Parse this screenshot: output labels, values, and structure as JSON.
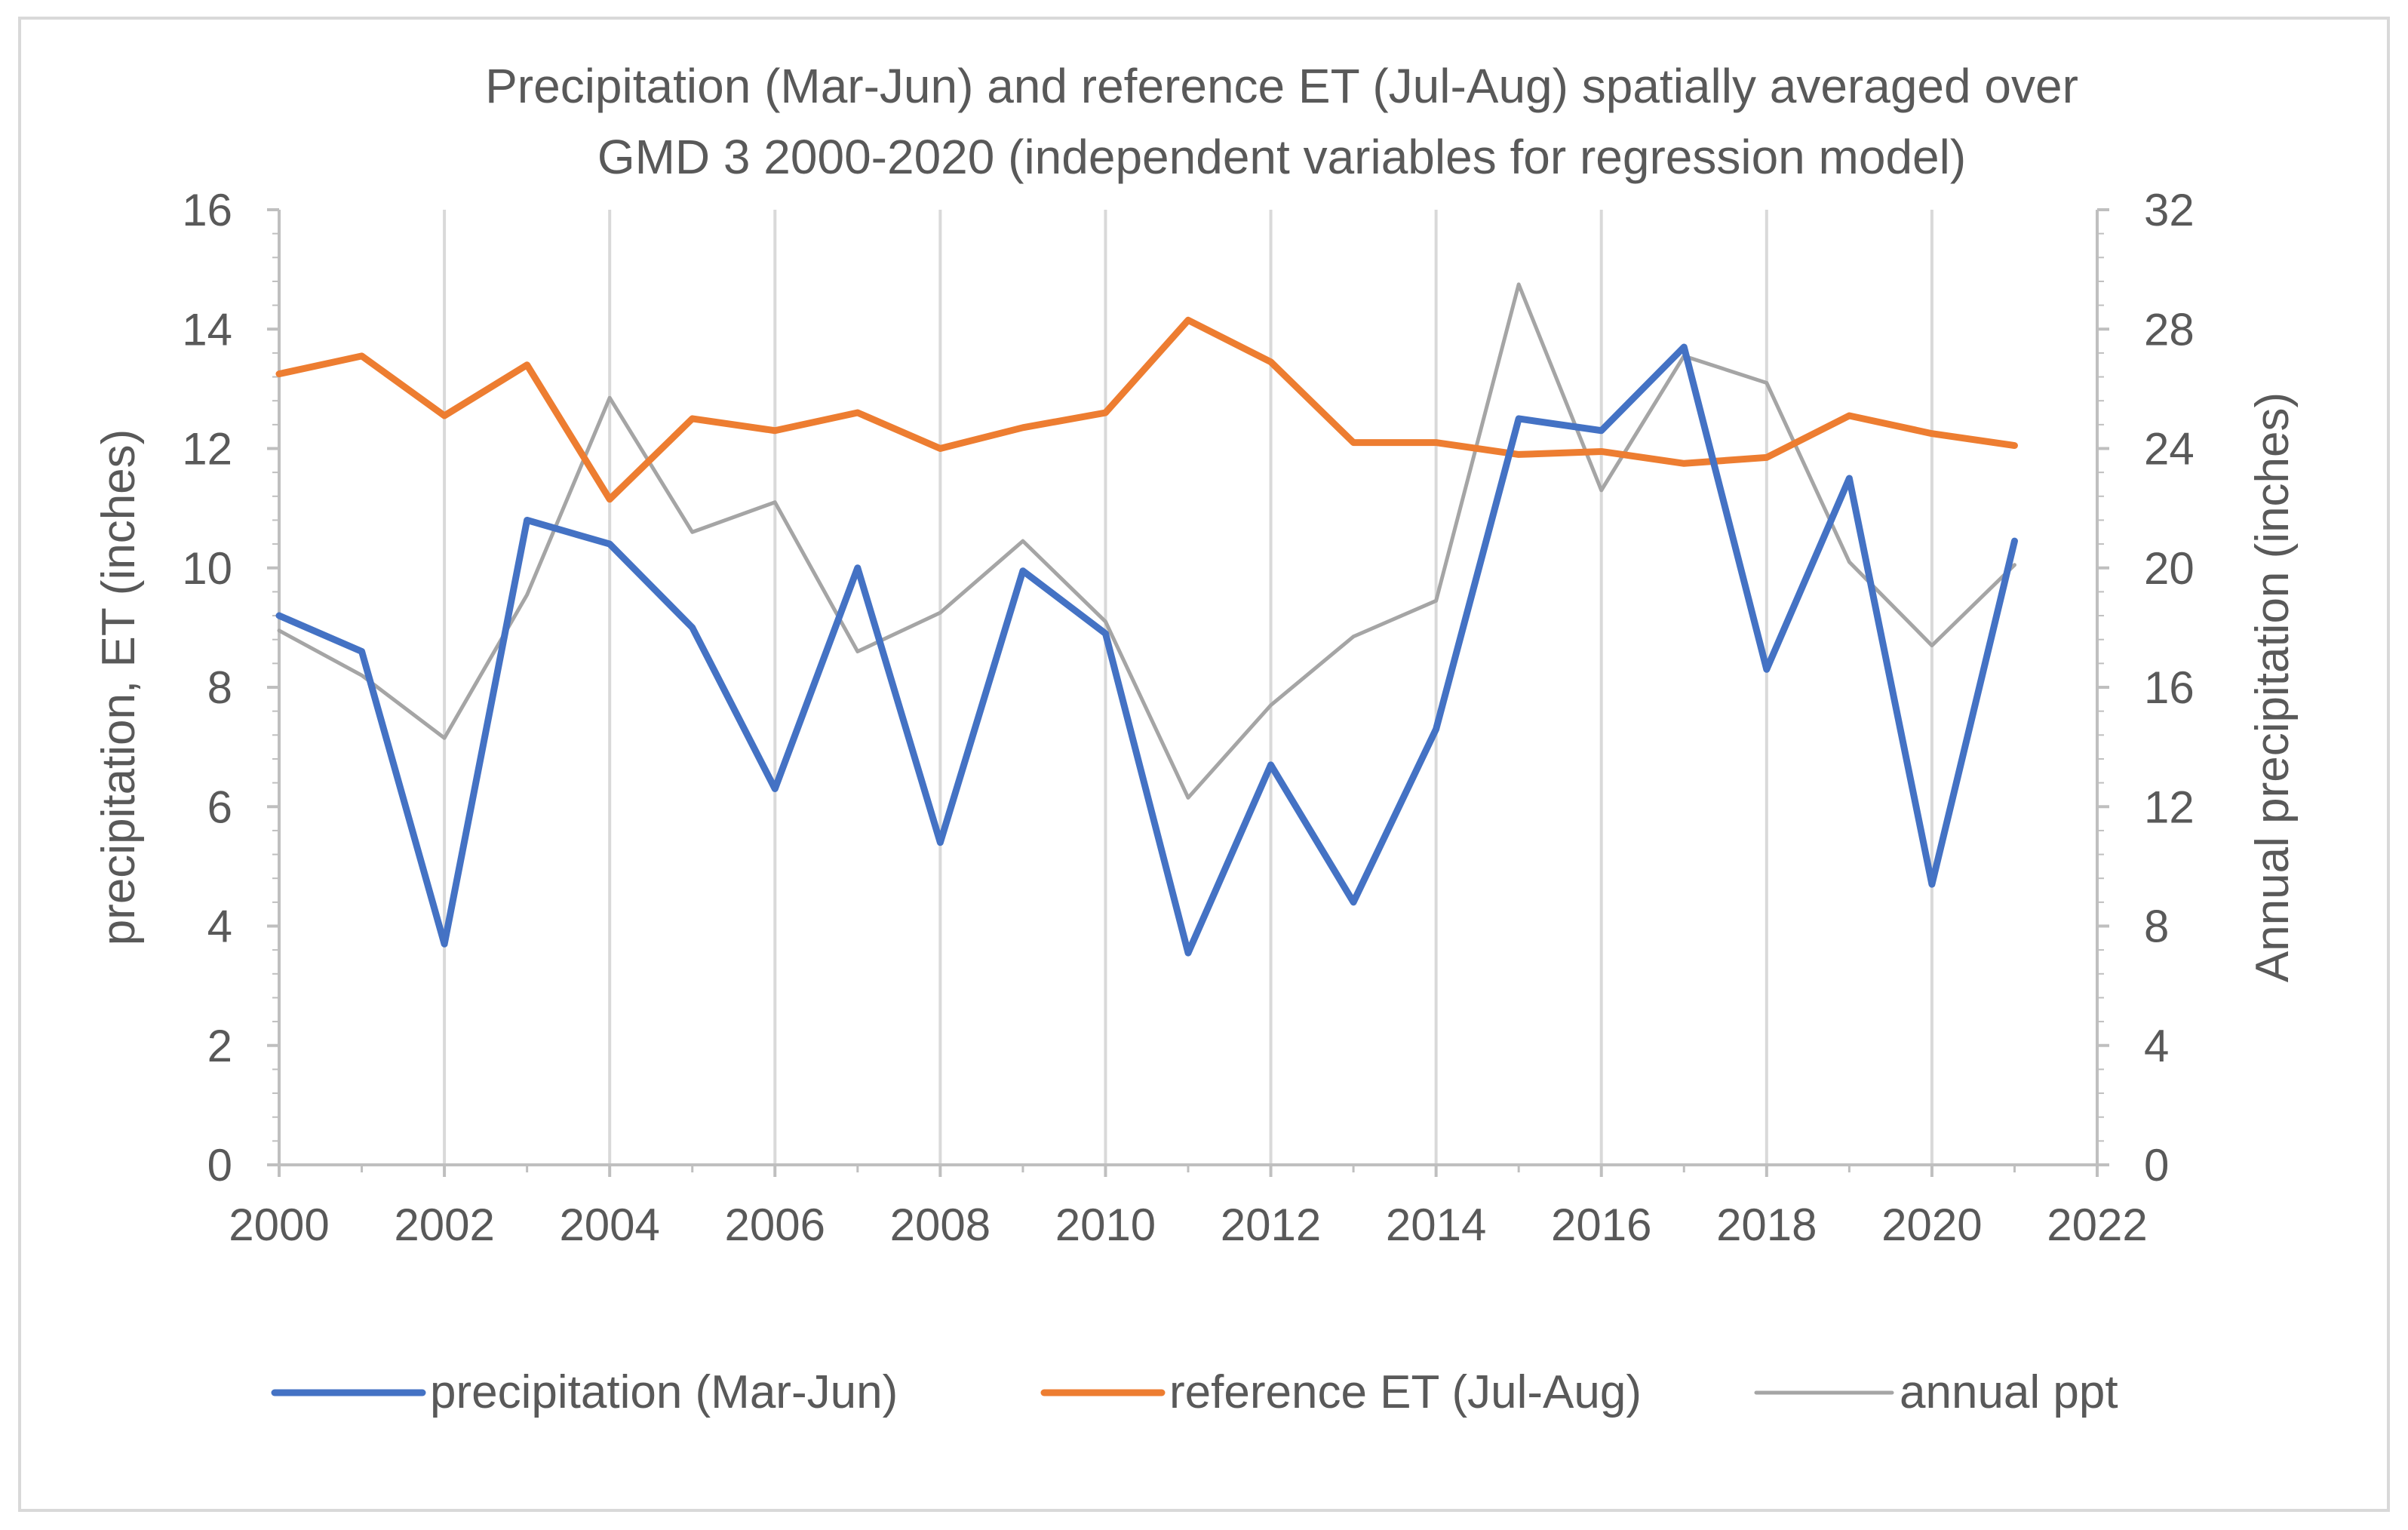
{
  "chart_data": {
    "type": "line",
    "title": "Precipitation (Mar-Jun) and reference  ET (Jul-Aug) spatially averaged over GMD 3 2000-2020 (independent variables for regression model)",
    "title_lines": [
      "Precipitation (Mar-Jun) and reference  ET (Jul-Aug) spatially averaged over",
      "GMD 3 2000-2020 (independent variables for regression model)"
    ],
    "ylabel": "precipitation, ET (inches)",
    "y2label": "Annual precipitation (inches)",
    "xlim": [
      2000,
      2022
    ],
    "ylim": [
      0,
      16
    ],
    "y2lim": [
      0,
      32
    ],
    "x_ticks": [
      "2000",
      "2002",
      "2004",
      "2006",
      "2008",
      "2010",
      "2012",
      "2014",
      "2016",
      "2018",
      "2020",
      "2022"
    ],
    "y_ticks": [
      "0",
      "2",
      "4",
      "6",
      "8",
      "10",
      "12",
      "14",
      "16"
    ],
    "y2_ticks": [
      "0",
      "4",
      "8",
      "12",
      "16",
      "20",
      "24",
      "28",
      "32"
    ],
    "grid": "vertical",
    "legend_position": "bottom",
    "x": [
      2000,
      2001,
      2002,
      2003,
      2004,
      2005,
      2006,
      2007,
      2008,
      2009,
      2010,
      2011,
      2012,
      2013,
      2014,
      2015,
      2016,
      2017,
      2018,
      2019,
      2020,
      2021
    ],
    "series": [
      {
        "name": "precipitation (Mar-Jun)",
        "axis": "left",
        "color": "#4472c4",
        "values": [
          9.2,
          8.6,
          3.7,
          10.8,
          10.4,
          9.0,
          6.3,
          10.0,
          5.4,
          9.95,
          8.9,
          3.55,
          6.7,
          4.4,
          7.3,
          12.5,
          12.3,
          13.7,
          8.3,
          11.5,
          4.7,
          10.45
        ]
      },
      {
        "name": "reference ET (Jul-Aug)",
        "axis": "left",
        "color": "#ed7d31",
        "values": [
          13.25,
          13.55,
          12.55,
          13.4,
          11.15,
          12.5,
          12.3,
          12.6,
          12.0,
          12.35,
          12.6,
          14.15,
          13.45,
          12.1,
          12.1,
          11.9,
          11.95,
          11.75,
          11.85,
          12.55,
          12.25,
          12.05
        ]
      },
      {
        "name": "annual ppt",
        "axis": "right",
        "color": "#a5a5a5",
        "values": [
          17.9,
          16.4,
          14.3,
          19.1,
          25.7,
          21.2,
          22.2,
          17.2,
          18.5,
          20.9,
          18.2,
          12.3,
          15.4,
          17.7,
          18.9,
          29.5,
          22.6,
          27.1,
          26.2,
          20.2,
          17.4,
          20.1
        ]
      }
    ]
  }
}
